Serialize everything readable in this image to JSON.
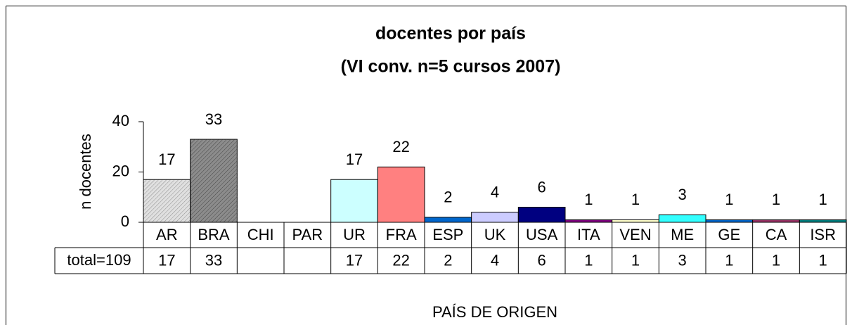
{
  "chart_data": {
    "type": "bar",
    "title": [
      "docentes por país",
      "(VI conv. n=5 cursos 2007)"
    ],
    "y_label": "n docentes",
    "x_label": "PAÍS DE ORIGEN",
    "table_row_label": "total=109",
    "categories": [
      "AR",
      "BRA",
      "CHI",
      "PAR",
      "UR",
      "FRA",
      "ESP",
      "UK",
      "USA",
      "ITA",
      "VEN",
      "ME",
      "GE",
      "CA",
      "ISR"
    ],
    "values": [
      17,
      33,
      null,
      null,
      17,
      22,
      2,
      4,
      6,
      1,
      1,
      3,
      1,
      1,
      1
    ],
    "colors": [
      "#e0e0e0",
      "#8c8c8c",
      null,
      null,
      "#ccffff",
      "#ff8080",
      "#0066cc",
      "#ccccff",
      "#000080",
      "#800080",
      "#ffffcc",
      "#33ffff",
      "#0066cc",
      "#993366",
      "#008080"
    ],
    "hatch": [
      true,
      true,
      false,
      false,
      false,
      false,
      false,
      false,
      false,
      false,
      false,
      false,
      false,
      false,
      false
    ],
    "ylim": [
      0,
      40
    ],
    "yticks": [
      0,
      20,
      40
    ],
    "grid": false
  }
}
